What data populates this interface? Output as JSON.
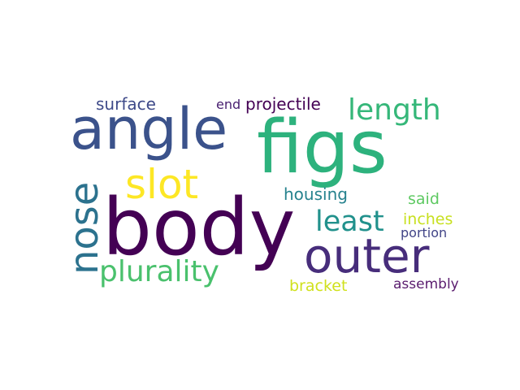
{
  "words": [
    {
      "text": "body",
      "color": "#440154"
    },
    {
      "text": "figs",
      "color": "#2db27d"
    },
    {
      "text": "angle",
      "color": "#3b528b"
    },
    {
      "text": "outer",
      "color": "#472d7b"
    },
    {
      "text": "nose",
      "color": "#2c728e"
    },
    {
      "text": "slot",
      "color": "#fde725"
    },
    {
      "text": "plurality",
      "color": "#4ac16d"
    },
    {
      "text": "length",
      "color": "#35b779"
    },
    {
      "text": "least",
      "color": "#21918c"
    },
    {
      "text": "projectile",
      "color": "#440154"
    },
    {
      "text": "surface",
      "color": "#3e4a89"
    },
    {
      "text": "housing",
      "color": "#26828e"
    },
    {
      "text": "end",
      "color": "#481f70"
    },
    {
      "text": "said",
      "color": "#5ec962"
    },
    {
      "text": "inches",
      "color": "#c8e020"
    },
    {
      "text": "portion",
      "color": "#414487"
    },
    {
      "text": "bracket",
      "color": "#d0e11c"
    },
    {
      "text": "assembly",
      "color": "#5a1c6e"
    }
  ]
}
